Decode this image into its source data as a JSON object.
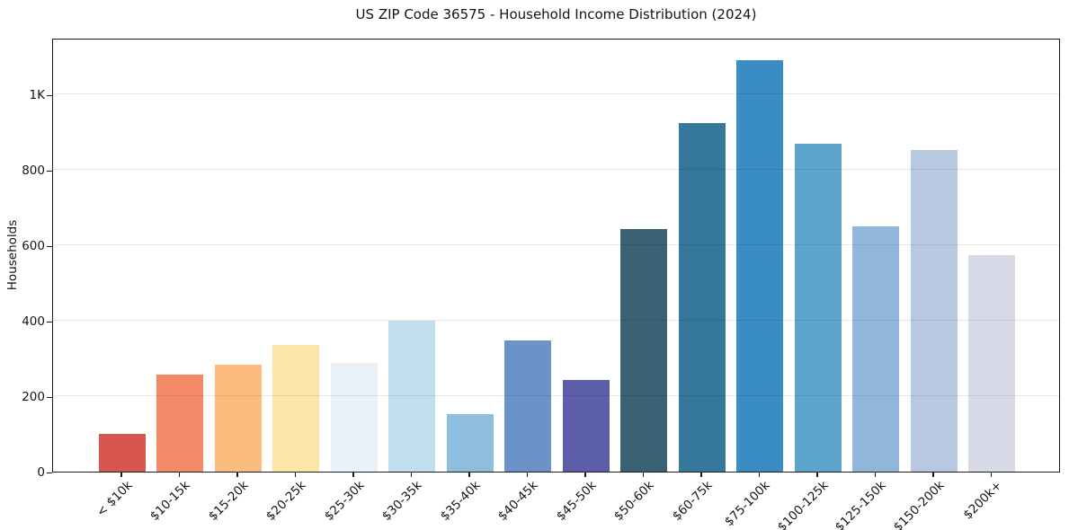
{
  "chart_data": {
    "type": "bar",
    "title": "US ZIP Code 36575 - Household Income Distribution (2024)",
    "xlabel": "",
    "ylabel": "Households",
    "categories": [
      "< $10k",
      "$10-15k",
      "$15-20k",
      "$20-25k",
      "$25-30k",
      "$30-35k",
      "$35-40k",
      "$40-45k",
      "$45-50k",
      "$50-60k",
      "$60-75k",
      "$75-100k",
      "$100-125k",
      "$125-150k",
      "$150-200k",
      "$200k+"
    ],
    "values": [
      100,
      258,
      283,
      335,
      288,
      400,
      153,
      348,
      243,
      644,
      924,
      1090,
      868,
      650,
      852,
      573
    ],
    "bar_colors": [
      "#d6554d",
      "#f28a68",
      "#fcbc80",
      "#fce5a6",
      "#e9f2f8",
      "#c1e0ee",
      "#8ebede",
      "#6b93c8",
      "#5c5ea9",
      "#3a6273",
      "#35789a",
      "#398dc2",
      "#5ea5cb",
      "#90b6da",
      "#b7c8e1",
      "#d8d9e7"
    ],
    "yticks": [
      {
        "value": 0,
        "label": "0"
      },
      {
        "value": 200,
        "label": "200"
      },
      {
        "value": 400,
        "label": "400"
      },
      {
        "value": 600,
        "label": "600"
      },
      {
        "value": 800,
        "label": "800"
      },
      {
        "value": 1000,
        "label": "1K"
      }
    ],
    "ylim": [
      0,
      1150
    ],
    "grid": "horizontal",
    "legend": "none",
    "background_color": "#ffffff",
    "spine_color": "#1a1a1a"
  }
}
